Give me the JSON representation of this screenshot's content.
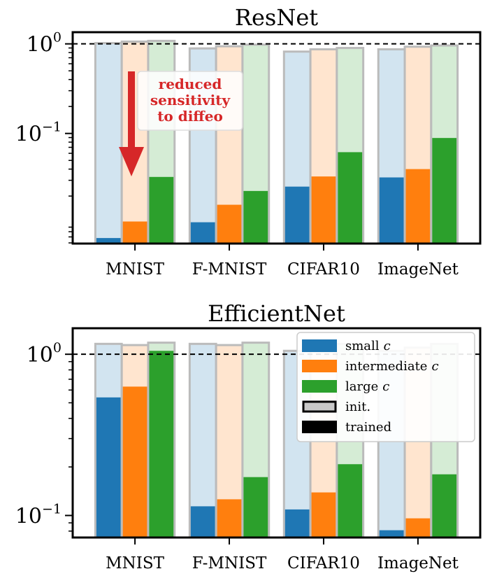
{
  "chart_data": [
    {
      "type": "bar",
      "title": "ResNet",
      "categories": [
        "MNIST",
        "F-MNIST",
        "CIFAR10",
        "ImageNet"
      ],
      "yscale": "log",
      "ylim": [
        0.0059,
        1.35
      ],
      "yticks": [
        {
          "base": "10",
          "exp": "0",
          "value": 1
        },
        {
          "base": "10",
          "exp": "−1",
          "value": 0.1
        }
      ],
      "reference_line": 1,
      "series": [
        {
          "name": "small c",
          "color": "#1f77b4",
          "init": [
            1.02,
            0.89,
            0.82,
            0.87
          ],
          "trained": [
            0.0068,
            0.0102,
            0.0255,
            0.0323
          ]
        },
        {
          "name": "intermediate c",
          "color": "#ff7f0e",
          "init": [
            1.06,
            0.94,
            0.87,
            0.93
          ],
          "trained": [
            0.0104,
            0.016,
            0.0331,
            0.04
          ]
        },
        {
          "name": "large c",
          "color": "#2ca02c",
          "init": [
            1.08,
            0.98,
            0.9,
            0.96
          ],
          "trained": [
            0.0327,
            0.0228,
            0.0618,
            0.089
          ]
        }
      ],
      "annotation": {
        "text_lines": [
          "reduced",
          "sensitivity",
          "to diffeo"
        ],
        "color": "#d62728"
      }
    },
    {
      "type": "bar",
      "title": "EfficientNet",
      "categories": [
        "MNIST",
        "F-MNIST",
        "CIFAR10",
        "ImageNet"
      ],
      "yscale": "log",
      "ylim": [
        0.073,
        1.45
      ],
      "yticks": [
        {
          "base": "10",
          "exp": "0",
          "value": 1
        },
        {
          "base": "10",
          "exp": "−1",
          "value": 0.1
        }
      ],
      "reference_line": 1,
      "series": [
        {
          "name": "small c",
          "color": "#1f77b4",
          "init": [
            1.16,
            1.16,
            1.05,
            1.05
          ],
          "trained": [
            0.54,
            0.114,
            0.109,
            0.081
          ]
        },
        {
          "name": "intermediate c",
          "color": "#ff7f0e",
          "init": [
            1.14,
            1.14,
            1.1,
            1.1
          ],
          "trained": [
            0.63,
            0.126,
            0.139,
            0.096
          ]
        },
        {
          "name": "large c",
          "color": "#2ca02c",
          "init": [
            1.18,
            1.18,
            1.16,
            1.16
          ],
          "trained": [
            1.05,
            0.173,
            0.208,
            0.18
          ]
        }
      ],
      "legend": {
        "placement": "top-right",
        "entries": [
          {
            "label": "small",
            "var": "c",
            "kind": "fill",
            "color": "#1f77b4"
          },
          {
            "label": "intermediate",
            "var": "c",
            "kind": "fill",
            "color": "#ff7f0e"
          },
          {
            "label": "large",
            "var": "c",
            "kind": "fill",
            "color": "#2ca02c"
          },
          {
            "label": "init.",
            "var": "",
            "kind": "outline",
            "color": "#c8c8c8"
          },
          {
            "label": "trained",
            "var": "",
            "kind": "fill",
            "color": "#000000"
          }
        ]
      }
    }
  ]
}
